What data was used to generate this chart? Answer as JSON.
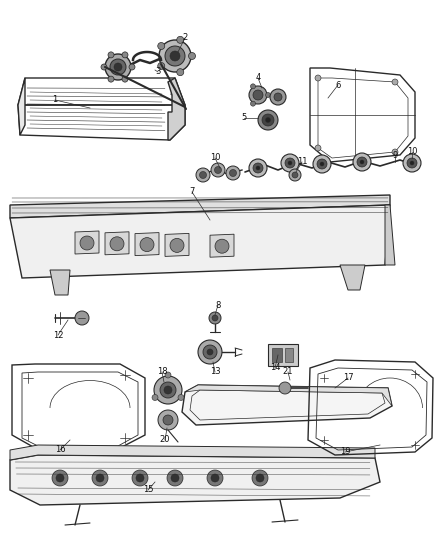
{
  "background_color": "#ffffff",
  "line_color": "#2a2a2a",
  "fig_width": 4.38,
  "fig_height": 5.33,
  "dpi": 100,
  "label_fontsize": 6.0,
  "lw_main": 1.0,
  "lw_thin": 0.5,
  "gray_fill": "#888888",
  "light_gray": "#cccccc",
  "dark_gray": "#444444"
}
